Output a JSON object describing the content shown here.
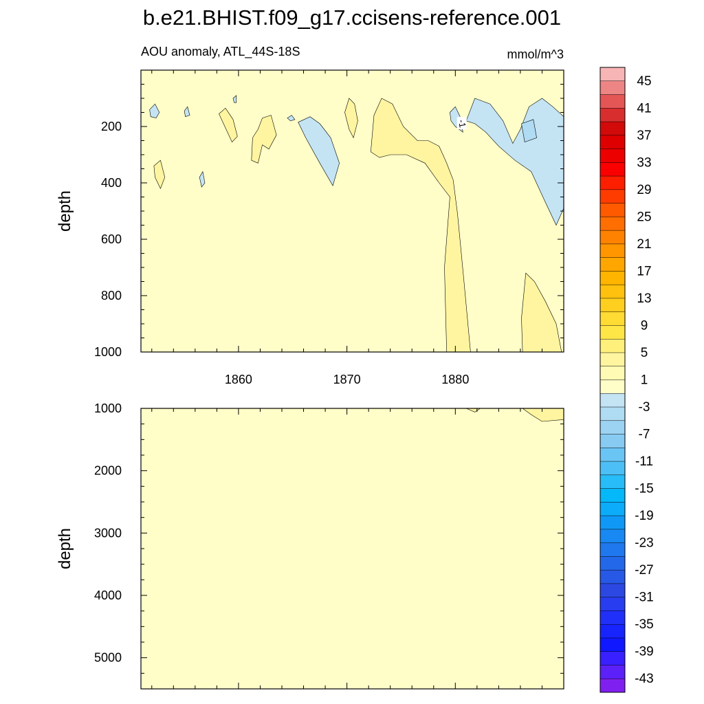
{
  "title": "b.e21.BHIST.f09_g17.ccisens-reference.001",
  "chart_data": {
    "type": "heatmap",
    "subtitle_left": "AOU anomaly, ATL_44S-18S",
    "subtitle_right": "mmol/m^3",
    "xlim": [
      1851,
      1890
    ],
    "xticks": [
      "1860",
      "1870",
      "1880"
    ],
    "panels": [
      {
        "name": "upper",
        "ylabel": "depth",
        "ylim": [
          0,
          1000
        ],
        "yticks": [
          "200",
          "400",
          "600",
          "800",
          "1000"
        ],
        "background_value": 0,
        "contour_label": "-1",
        "regions": [
          {
            "id": "neg-1851",
            "value": -2,
            "points": [
              [
                1851.8,
                140
              ],
              [
                1852.3,
                120
              ],
              [
                1852.7,
                150
              ],
              [
                1852.4,
                170
              ],
              [
                1851.9,
                165
              ]
            ]
          },
          {
            "id": "neg-1855",
            "value": -2,
            "points": [
              [
                1855,
                145
              ],
              [
                1855.3,
                130
              ],
              [
                1855.5,
                160
              ],
              [
                1855.1,
                165
              ]
            ]
          },
          {
            "id": "neg-1857",
            "value": -2,
            "points": [
              [
                1856.4,
                380
              ],
              [
                1856.7,
                360
              ],
              [
                1856.9,
                400
              ],
              [
                1856.6,
                415
              ]
            ]
          },
          {
            "id": "neg-1859",
            "value": -2,
            "points": [
              [
                1859.5,
                100
              ],
              [
                1859.8,
                90
              ],
              [
                1859.8,
                115
              ],
              [
                1859.6,
                115
              ]
            ]
          },
          {
            "id": "neg-1864",
            "value": -2,
            "points": [
              [
                1864.5,
                170
              ],
              [
                1864.9,
                160
              ],
              [
                1865.2,
                175
              ],
              [
                1864.8,
                180
              ]
            ]
          },
          {
            "id": "neg-1866",
            "value": -2,
            "points": [
              [
                1865.5,
                185
              ],
              [
                1866.6,
                165
              ],
              [
                1867.5,
                190
              ],
              [
                1868.5,
                240
              ],
              [
                1869.3,
                330
              ],
              [
                1868.7,
                410
              ],
              [
                1867.5,
                330
              ],
              [
                1866.2,
                240
              ]
            ]
          },
          {
            "id": "neg-1880",
            "value": -2,
            "points": [
              [
                1879.5,
                150
              ],
              [
                1880,
                130
              ],
              [
                1880.5,
                170
              ],
              [
                1880.7,
                220
              ],
              [
                1880,
                200
              ],
              [
                1879.6,
                180
              ]
            ]
          },
          {
            "id": "neg-1881",
            "value": -2,
            "points": [
              [
                1881,
                180
              ],
              [
                1881.8,
                100
              ],
              [
                1883.2,
                120
              ],
              [
                1884.4,
                180
              ],
              [
                1885.3,
                260
              ],
              [
                1886,
                210
              ],
              [
                1886.8,
                130
              ],
              [
                1888,
                100
              ],
              [
                1889,
                130
              ],
              [
                1890,
                165
              ],
              [
                1890,
                490
              ],
              [
                1889.3,
                550
              ],
              [
                1888.2,
                460
              ],
              [
                1887,
                360
              ],
              [
                1885.5,
                320
              ],
              [
                1884,
                270
              ],
              [
                1882.8,
                220
              ],
              [
                1881.8,
                190
              ]
            ]
          },
          {
            "id": "neg-1885-core",
            "value": -6,
            "points": [
              [
                1886.1,
                190
              ],
              [
                1887.2,
                175
              ],
              [
                1887.5,
                240
              ],
              [
                1886.4,
                255
              ]
            ]
          },
          {
            "id": "pos-1852",
            "value": 2,
            "points": [
              [
                1852.2,
                340
              ],
              [
                1852.8,
                320
              ],
              [
                1853.2,
                380
              ],
              [
                1852.8,
                420
              ],
              [
                1852.3,
                380
              ]
            ]
          },
          {
            "id": "pos-1859",
            "value": 2,
            "points": [
              [
                1858.2,
                155
              ],
              [
                1858.8,
                135
              ],
              [
                1859.5,
                175
              ],
              [
                1859.9,
                235
              ],
              [
                1859.4,
                255
              ],
              [
                1858.8,
                205
              ]
            ]
          },
          {
            "id": "pos-1862",
            "value": 2,
            "points": [
              [
                1861.3,
                240
              ],
              [
                1861.8,
                210
              ],
              [
                1862.2,
                170
              ],
              [
                1863,
                160
              ],
              [
                1863.5,
                230
              ],
              [
                1862.8,
                280
              ],
              [
                1862.2,
                265
              ],
              [
                1861.8,
                330
              ],
              [
                1861.2,
                320
              ]
            ]
          },
          {
            "id": "pos-1870",
            "value": 2,
            "points": [
              [
                1869.8,
                150
              ],
              [
                1870.2,
                100
              ],
              [
                1870.7,
                120
              ],
              [
                1871,
                180
              ],
              [
                1870.6,
                240
              ],
              [
                1870.2,
                210
              ]
            ]
          },
          {
            "id": "pos-1873",
            "value": 2,
            "points": [
              [
                1872.2,
                290
              ],
              [
                1872.5,
                160
              ],
              [
                1873.2,
                100
              ],
              [
                1874.2,
                120
              ],
              [
                1875.2,
                200
              ],
              [
                1876.5,
                250
              ],
              [
                1877.5,
                250
              ],
              [
                1878.5,
                270
              ],
              [
                1879.2,
                330
              ],
              [
                1879.8,
                390
              ],
              [
                1880.2,
                510
              ],
              [
                1880.8,
                750
              ],
              [
                1881.4,
                1000
              ],
              [
                1879.2,
                1000
              ],
              [
                1879,
                700
              ],
              [
                1879.5,
                450
              ],
              [
                1878.5,
                400
              ],
              [
                1877.2,
                330
              ],
              [
                1875.5,
                300
              ],
              [
                1874,
                300
              ],
              [
                1873,
                310
              ]
            ]
          },
          {
            "id": "pos-1887",
            "value": 2,
            "points": [
              [
                1886.1,
                880
              ],
              [
                1886.5,
                720
              ],
              [
                1887.3,
                750
              ],
              [
                1888.3,
                820
              ],
              [
                1889.3,
                900
              ],
              [
                1889.8,
                1000
              ],
              [
                1886.2,
                1000
              ]
            ]
          }
        ]
      },
      {
        "name": "lower",
        "ylabel": "depth",
        "ylim": [
          1000,
          5500
        ],
        "yticks": [
          "1000",
          "2000",
          "3000",
          "4000",
          "5000"
        ],
        "background_value": 0,
        "regions": [
          {
            "id": "pos-1882-deep",
            "value": 2,
            "points": [
              [
                1881,
                1000
              ],
              [
                1882.3,
                1000
              ],
              [
                1881.8,
                1060
              ]
            ]
          },
          {
            "id": "pos-1887-deep",
            "value": 2,
            "points": [
              [
                1886.2,
                1000
              ],
              [
                1890,
                1000
              ],
              [
                1890,
                1180
              ],
              [
                1888,
                1210
              ],
              [
                1887,
                1100
              ]
            ]
          }
        ]
      }
    ],
    "colorbar": {
      "labels": [
        "45",
        "41",
        "37",
        "33",
        "29",
        "25",
        "21",
        "17",
        "13",
        "9",
        "5",
        "1",
        "-3",
        "-7",
        "-11",
        "-15",
        "-19",
        "-23",
        "-27",
        "-31",
        "-35",
        "-39",
        "-43"
      ],
      "colors": [
        "#f8b5b5",
        "#ee8585",
        "#e45656",
        "#d82e2e",
        "#d20a0a",
        "#de0000",
        "#ec0000",
        "#fa0000",
        "#fe1e00",
        "#ff3c00",
        "#ff5a00",
        "#ff6e00",
        "#ff8200",
        "#ff9600",
        "#ffa600",
        "#ffb400",
        "#ffc10d",
        "#ffcf20",
        "#ffdb33",
        "#ffe647",
        "#fff07b",
        "#fff5a0",
        "#fffbb4",
        "#fffdc8",
        "#c4e4f4",
        "#b0dcf3",
        "#9cd3f2",
        "#88cbf2",
        "#6ac5f4",
        "#4cc0f6",
        "#28bcf8",
        "#04b8fa",
        "#0cacfa",
        "#1098f6",
        "#1888f2",
        "#2078ee",
        "#2468ea",
        "#2858e6",
        "#2c48e2",
        "#283cf0",
        "#2030f8",
        "#1824fe",
        "#1018ff",
        "#3820ff",
        "#5c20f8",
        "#8020f0"
      ]
    }
  }
}
